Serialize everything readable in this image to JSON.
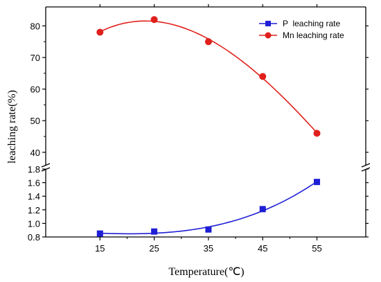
{
  "chart_data": {
    "type": "line",
    "xlabel": "Temperature(℃)",
    "ylabel": "leaching rate(%)",
    "x": [
      15,
      25,
      35,
      45,
      55
    ],
    "xticks": [
      15,
      25,
      35,
      45,
      55
    ],
    "xlim": [
      5,
      64
    ],
    "y_axis_break": true,
    "upper_panel": {
      "ylim": [
        36,
        86
      ],
      "yticks": [
        40,
        50,
        60,
        70,
        80
      ]
    },
    "lower_panel": {
      "ylim": [
        0.8,
        1.8
      ],
      "yticks": [
        0.8,
        1.0,
        1.2,
        1.4,
        1.6,
        1.8
      ],
      "ytick_labels": [
        "0.8",
        "1.0",
        "1.2",
        "1.4",
        "1.6",
        "1.8"
      ]
    },
    "legend_position": "top-right",
    "series": [
      {
        "name": "P  leaching rate",
        "panel": "lower",
        "marker": "square",
        "color": "#1f1fd6",
        "values": [
          0.85,
          0.88,
          0.91,
          1.21,
          1.61
        ]
      },
      {
        "name": "Mn leaching rate",
        "panel": "upper",
        "marker": "circle",
        "color": "#e0201c",
        "values": [
          78,
          82,
          75,
          64,
          46
        ]
      }
    ]
  }
}
